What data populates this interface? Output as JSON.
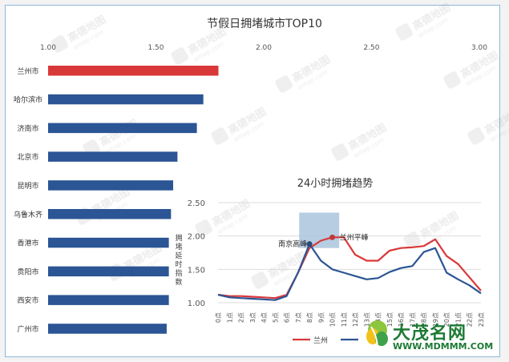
{
  "chart_data": [
    {
      "type": "bar",
      "orientation": "horizontal",
      "title": "节假日拥堵城市TOP10",
      "categories": [
        "兰州市",
        "哈尔滨市",
        "济南市",
        "北京市",
        "昆明市",
        "乌鲁木齐",
        "香港市",
        "贵阳市",
        "西安市",
        "广州市"
      ],
      "values": [
        1.79,
        1.72,
        1.69,
        1.6,
        1.58,
        1.57,
        1.56,
        1.56,
        1.56,
        1.55
      ],
      "xlim": [
        1.0,
        3.0
      ],
      "xticks": [
        "1.00",
        "1.50",
        "2.00",
        "2.50",
        "3.00"
      ],
      "x_axis_position": "top",
      "highlight_color": "#d9383a",
      "bar_color": "#2b5594"
    },
    {
      "type": "line",
      "title": "24小时拥堵趋势",
      "ylabel": "拥堵延时指数",
      "x": [
        "0点",
        "1点",
        "2点",
        "3点",
        "4点",
        "5点",
        "6点",
        "7点",
        "8点",
        "9点",
        "10点",
        "11点",
        "12点",
        "13点",
        "14点",
        "15点",
        "16点",
        "17点",
        "18点",
        "19点",
        "20点",
        "21点",
        "22点",
        "23点"
      ],
      "ylim": [
        1.0,
        2.5
      ],
      "yticks": [
        "1.00",
        "1.50",
        "2.00",
        "2.50"
      ],
      "series": [
        {
          "name": "兰州",
          "color": "#d9383a",
          "values": [
            1.12,
            1.1,
            1.1,
            1.09,
            1.08,
            1.07,
            1.12,
            1.45,
            1.82,
            1.93,
            1.98,
            1.98,
            1.72,
            1.63,
            1.63,
            1.78,
            1.82,
            1.83,
            1.85,
            1.95,
            1.7,
            1.58,
            1.38,
            1.18
          ]
        },
        {
          "name": "",
          "color": "#2b5594",
          "values": [
            1.12,
            1.08,
            1.07,
            1.06,
            1.05,
            1.04,
            1.1,
            1.45,
            1.88,
            1.63,
            1.5,
            1.45,
            1.4,
            1.35,
            1.37,
            1.46,
            1.52,
            1.55,
            1.76,
            1.82,
            1.45,
            1.35,
            1.26,
            1.14
          ]
        }
      ],
      "annotations": [
        {
          "text": "南京高峰",
          "x_index": 8,
          "y": 1.88
        },
        {
          "text": "兰州平峰",
          "x_index": 10,
          "y": 1.98
        }
      ],
      "highlight_band": {
        "x_from": 7.1,
        "x_to": 10.6,
        "y_from": 1.82,
        "y_to": 2.35,
        "color": "#a9c4dd"
      }
    }
  ],
  "watermark": {
    "text": "高德地图",
    "subtext": "amap.com"
  },
  "logo": {
    "name": "大茂名网",
    "url": "WWW.MDMMM.COM"
  }
}
